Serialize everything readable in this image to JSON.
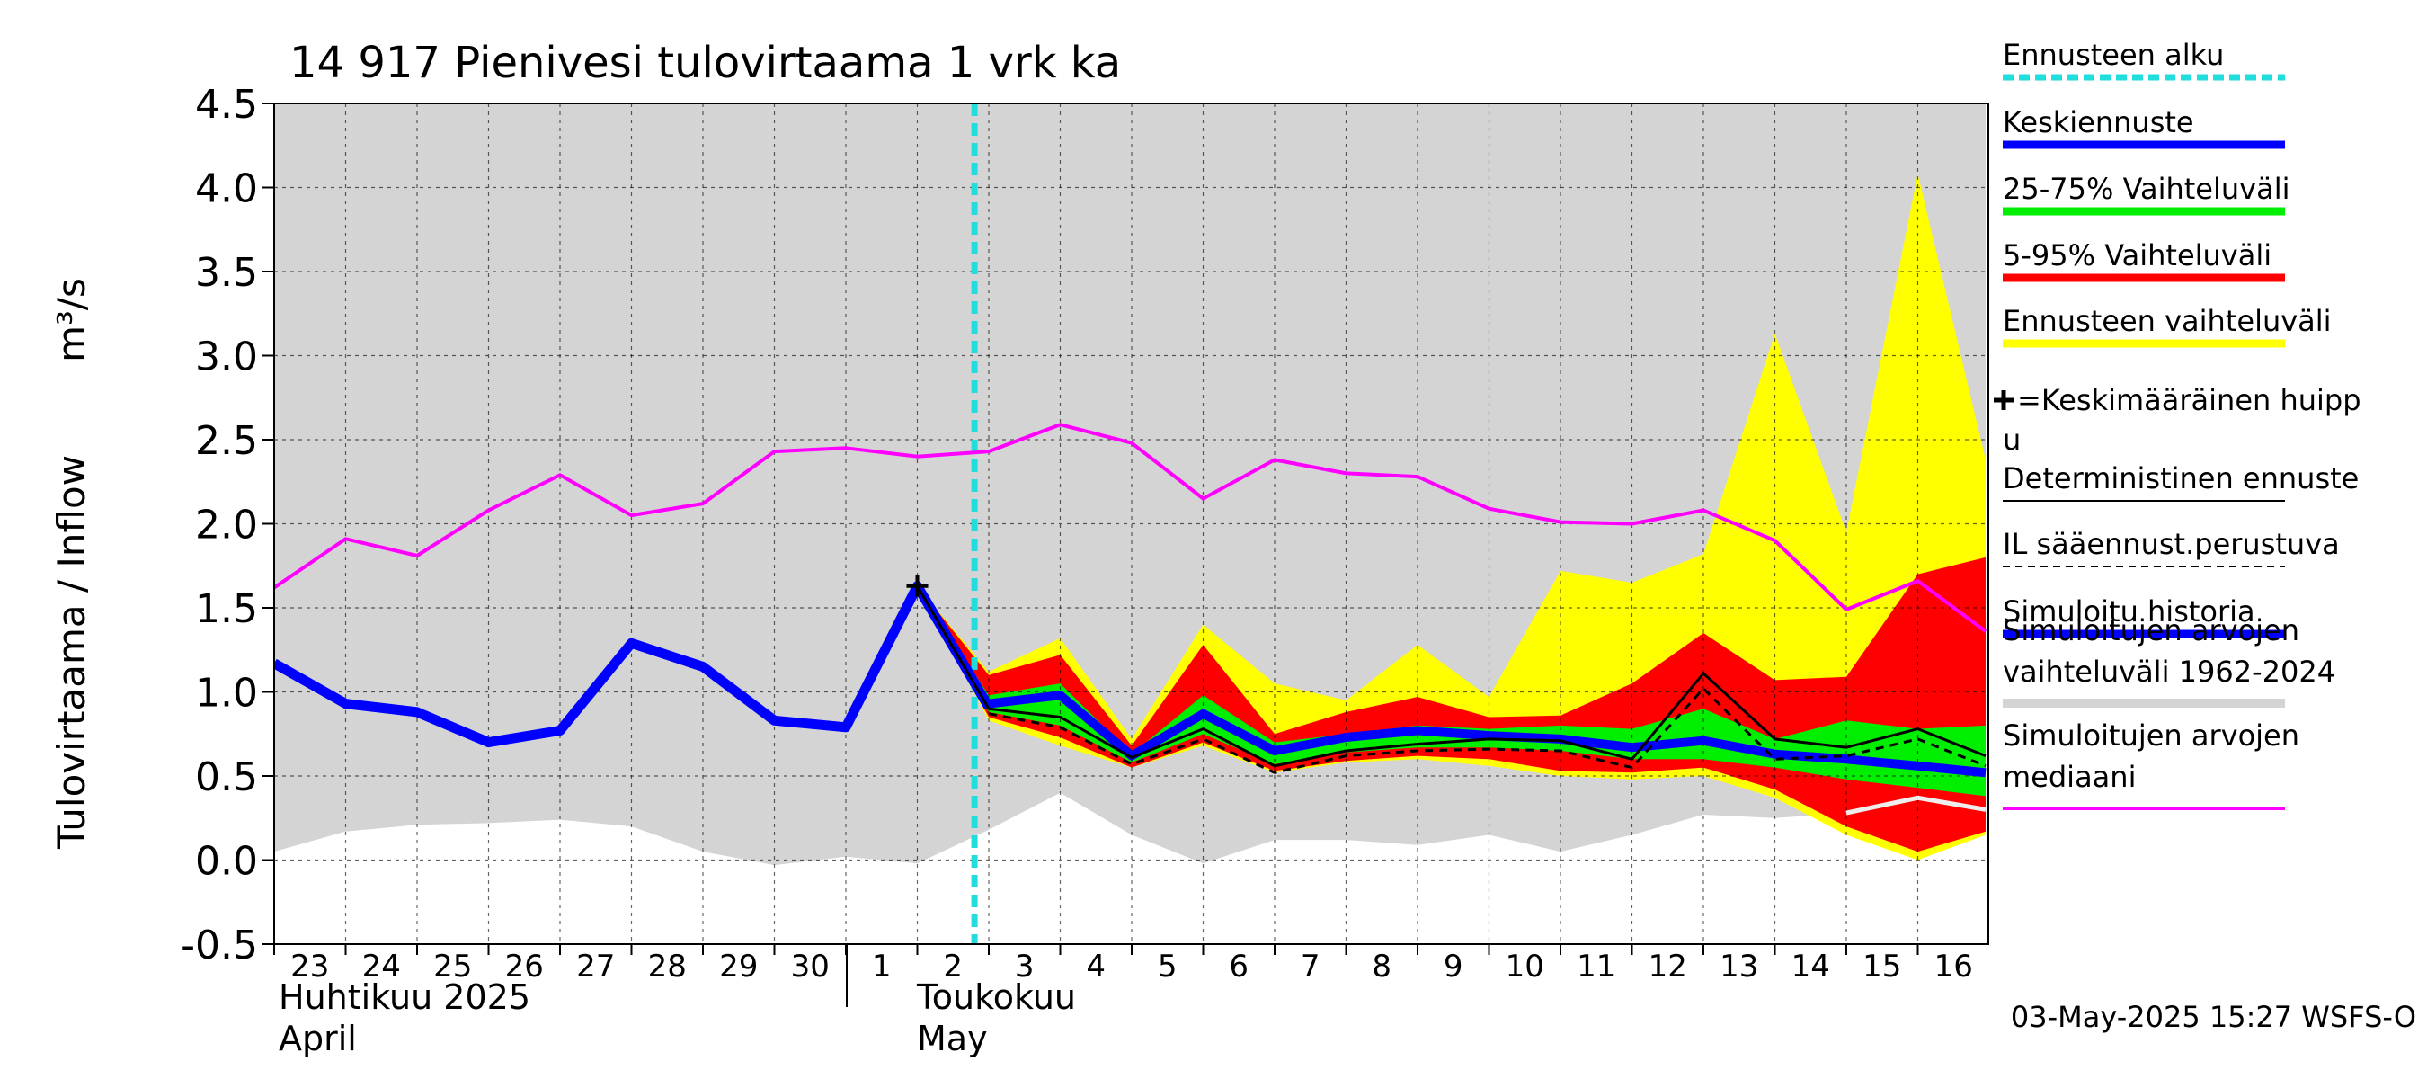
{
  "chart_data": {
    "type": "area",
    "title": "14 917 Pienivesi tulovirtaama 1 vrk ka",
    "ylabel": "Tulovirtaama / Inflow",
    "yunit": "m³/s",
    "ylim": [
      -0.5,
      4.5
    ],
    "yticks": [
      "4.5",
      "4.0",
      "3.5",
      "3.0",
      "2.5",
      "2.0",
      "1.5",
      "1.0",
      "0.5",
      "0.0",
      "-0.5"
    ],
    "ytick_values": [
      4.5,
      4.0,
      3.5,
      3.0,
      2.5,
      2.0,
      1.5,
      1.0,
      0.5,
      0.0,
      -0.5
    ],
    "x_days": [
      "23",
      "24",
      "25",
      "26",
      "27",
      "28",
      "29",
      "30",
      "1",
      "2",
      "3",
      "4",
      "5",
      "6",
      "7",
      "8",
      "9",
      "10",
      "11",
      "12",
      "13",
      "14",
      "15",
      "16"
    ],
    "month_labels": {
      "april_fi": "Huhtikuu  2025",
      "april_en": "April",
      "may_fi": "Toukokuu",
      "may_en": "May"
    },
    "forecast_start_x": 10,
    "grid": true,
    "series": {
      "sim_range_upper": [
        [
          0,
          4.5
        ],
        [
          23.95,
          4.5
        ]
      ],
      "sim_range_lower": [
        [
          0,
          0.05
        ],
        [
          1,
          0.17
        ],
        [
          2,
          0.21
        ],
        [
          3,
          0.22
        ],
        [
          4,
          0.24
        ],
        [
          5,
          0.2
        ],
        [
          6,
          0.05
        ],
        [
          7,
          -0.03
        ],
        [
          8,
          0.02
        ],
        [
          9,
          -0.02
        ],
        [
          10,
          0.18
        ],
        [
          11,
          0.4
        ],
        [
          12,
          0.15
        ],
        [
          13,
          -0.02
        ],
        [
          14,
          0.12
        ],
        [
          15,
          0.12
        ],
        [
          16,
          0.09
        ],
        [
          17,
          0.15
        ],
        [
          18,
          0.05
        ],
        [
          19,
          0.15
        ],
        [
          20,
          0.27
        ],
        [
          21,
          0.25
        ],
        [
          22,
          0.28
        ],
        [
          23,
          0.37
        ],
        [
          23.95,
          0.3
        ]
      ],
      "median": [
        [
          0,
          1.62
        ],
        [
          1,
          1.91
        ],
        [
          2,
          1.81
        ],
        [
          3,
          2.08
        ],
        [
          4,
          2.29
        ],
        [
          5,
          2.05
        ],
        [
          6,
          2.12
        ],
        [
          7,
          2.43
        ],
        [
          8,
          2.45
        ],
        [
          9,
          2.4
        ],
        [
          10,
          2.43
        ],
        [
          11,
          2.59
        ],
        [
          12,
          2.48
        ],
        [
          13,
          2.15
        ],
        [
          14,
          2.38
        ],
        [
          15,
          2.3
        ],
        [
          16,
          2.28
        ],
        [
          17,
          2.09
        ],
        [
          18,
          2.01
        ],
        [
          19,
          2.0
        ],
        [
          20,
          2.08
        ],
        [
          21,
          1.9
        ],
        [
          22,
          1.49
        ],
        [
          23,
          1.66
        ],
        [
          23.95,
          1.36
        ]
      ],
      "history": [
        [
          0,
          1.17
        ],
        [
          1,
          0.93
        ],
        [
          2,
          0.88
        ],
        [
          3,
          0.7
        ],
        [
          4,
          0.77
        ],
        [
          5,
          1.29
        ],
        [
          6,
          1.15
        ],
        [
          7,
          0.83
        ],
        [
          8,
          0.79
        ],
        [
          9,
          1.63
        ],
        [
          10,
          0.91
        ]
      ],
      "yellow_upper": [
        [
          9,
          1.63
        ],
        [
          10,
          1.12
        ],
        [
          11,
          1.32
        ],
        [
          12,
          0.72
        ],
        [
          13,
          1.4
        ],
        [
          14,
          1.05
        ],
        [
          15,
          0.95
        ],
        [
          16,
          1.28
        ],
        [
          17,
          0.97
        ],
        [
          18,
          1.72
        ],
        [
          19,
          1.65
        ],
        [
          20,
          1.82
        ],
        [
          21,
          3.13
        ],
        [
          22,
          1.95
        ],
        [
          23,
          4.08
        ],
        [
          23.95,
          2.38
        ]
      ],
      "yellow_lower": [
        [
          9,
          1.63
        ],
        [
          10,
          0.83
        ],
        [
          11,
          0.68
        ],
        [
          12,
          0.55
        ],
        [
          13,
          0.68
        ],
        [
          14,
          0.52
        ],
        [
          15,
          0.58
        ],
        [
          16,
          0.6
        ],
        [
          17,
          0.56
        ],
        [
          18,
          0.5
        ],
        [
          19,
          0.48
        ],
        [
          20,
          0.5
        ],
        [
          21,
          0.37
        ],
        [
          22,
          0.15
        ],
        [
          23,
          0.0
        ],
        [
          23.95,
          0.15
        ]
      ],
      "red_upper": [
        [
          9,
          1.63
        ],
        [
          10,
          1.1
        ],
        [
          11,
          1.22
        ],
        [
          12,
          0.68
        ],
        [
          13,
          1.28
        ],
        [
          14,
          0.75
        ],
        [
          15,
          0.88
        ],
        [
          16,
          0.97
        ],
        [
          17,
          0.85
        ],
        [
          18,
          0.86
        ],
        [
          19,
          1.05
        ],
        [
          20,
          1.35
        ],
        [
          21,
          1.07
        ],
        [
          22,
          1.09
        ],
        [
          23,
          1.7
        ],
        [
          23.95,
          1.8
        ]
      ],
      "red_lower": [
        [
          9,
          1.63
        ],
        [
          10,
          0.85
        ],
        [
          11,
          0.73
        ],
        [
          12,
          0.55
        ],
        [
          13,
          0.7
        ],
        [
          14,
          0.53
        ],
        [
          15,
          0.59
        ],
        [
          16,
          0.62
        ],
        [
          17,
          0.6
        ],
        [
          18,
          0.53
        ],
        [
          19,
          0.52
        ],
        [
          20,
          0.55
        ],
        [
          21,
          0.42
        ],
        [
          22,
          0.2
        ],
        [
          23,
          0.05
        ],
        [
          23.95,
          0.17
        ]
      ],
      "green_upper": [
        [
          9,
          1.63
        ],
        [
          10,
          0.98
        ],
        [
          11,
          1.05
        ],
        [
          12,
          0.63
        ],
        [
          13,
          0.98
        ],
        [
          14,
          0.7
        ],
        [
          15,
          0.75
        ],
        [
          16,
          0.8
        ],
        [
          17,
          0.78
        ],
        [
          18,
          0.8
        ],
        [
          19,
          0.78
        ],
        [
          20,
          0.9
        ],
        [
          21,
          0.72
        ],
        [
          22,
          0.83
        ],
        [
          23,
          0.78
        ],
        [
          23.95,
          0.8
        ]
      ],
      "green_lower": [
        [
          9,
          1.63
        ],
        [
          10,
          0.88
        ],
        [
          11,
          0.8
        ],
        [
          12,
          0.58
        ],
        [
          13,
          0.75
        ],
        [
          14,
          0.57
        ],
        [
          15,
          0.64
        ],
        [
          16,
          0.67
        ],
        [
          17,
          0.67
        ],
        [
          18,
          0.65
        ],
        [
          19,
          0.6
        ],
        [
          20,
          0.6
        ],
        [
          21,
          0.55
        ],
        [
          22,
          0.48
        ],
        [
          23,
          0.43
        ],
        [
          23.95,
          0.38
        ]
      ],
      "mean_forecast": [
        [
          10,
          0.93
        ],
        [
          11,
          0.98
        ],
        [
          12,
          0.62
        ],
        [
          13,
          0.87
        ],
        [
          14,
          0.65
        ],
        [
          15,
          0.73
        ],
        [
          16,
          0.77
        ],
        [
          17,
          0.74
        ],
        [
          18,
          0.72
        ],
        [
          19,
          0.67
        ],
        [
          20,
          0.71
        ],
        [
          21,
          0.63
        ],
        [
          22,
          0.6
        ],
        [
          23,
          0.56
        ],
        [
          23.95,
          0.52
        ]
      ],
      "deterministic": [
        [
          9,
          1.63
        ],
        [
          10,
          0.9
        ],
        [
          11,
          0.85
        ],
        [
          12,
          0.61
        ],
        [
          13,
          0.78
        ],
        [
          14,
          0.56
        ],
        [
          15,
          0.65
        ],
        [
          16,
          0.69
        ],
        [
          17,
          0.72
        ],
        [
          18,
          0.71
        ],
        [
          19,
          0.6
        ],
        [
          20,
          1.11
        ],
        [
          21,
          0.72
        ],
        [
          22,
          0.67
        ],
        [
          23,
          0.78
        ],
        [
          23.95,
          0.62
        ]
      ],
      "il_forecast": [
        [
          10,
          0.87
        ],
        [
          11,
          0.79
        ],
        [
          12,
          0.57
        ],
        [
          13,
          0.72
        ],
        [
          14,
          0.52
        ],
        [
          15,
          0.62
        ],
        [
          16,
          0.65
        ],
        [
          17,
          0.66
        ],
        [
          18,
          0.65
        ],
        [
          19,
          0.55
        ],
        [
          20,
          1.02
        ],
        [
          21,
          0.6
        ],
        [
          22,
          0.62
        ],
        [
          23,
          0.72
        ],
        [
          23.95,
          0.56
        ]
      ],
      "peak_marker": {
        "x": 9,
        "y": 1.63
      }
    },
    "colors": {
      "sim_range": "#d4d4d4",
      "median": "#ff00ff",
      "history": "#0000ff",
      "mean_forecast": "#0000ff",
      "green": "#00ee00",
      "red": "#ff0000",
      "yellow": "#ffff00",
      "forecast_start": "#22dddd",
      "deterministic": "#000000",
      "il_forecast": "#000000",
      "light_line": "#eeeeee"
    },
    "legend": [
      {
        "label": "Ennusteen alku",
        "style": "dotted-cyan"
      },
      {
        "label": "Keskiennuste",
        "style": "blue-thick"
      },
      {
        "label": "25-75% Vaihteluväli",
        "style": "green-thick"
      },
      {
        "label": "5-95% Vaihteluväli",
        "style": "red-thick"
      },
      {
        "label": "Ennusteen vaihteluväli",
        "style": "yellow-thick"
      },
      {
        "label": "=Keskimääräinen huipp",
        "label2": "u",
        "style": "plus"
      },
      {
        "label": "Deterministinen ennuste",
        "style": "black-thin"
      },
      {
        "label": "IL sääennust.perustuva",
        "style": "black-dashed"
      },
      {
        "label": "Simuloitu historia",
        "style": "blue-thick"
      },
      {
        "label": "Simuloitujen arvojen",
        "label2": "vaihteluväli 1962-2024",
        "style": "gray-thick"
      },
      {
        "label": "Simuloitujen arvojen",
        "label2": "mediaani",
        "style": "magenta-thin"
      }
    ],
    "footer": "03-May-2025 15:27 WSFS-O"
  }
}
